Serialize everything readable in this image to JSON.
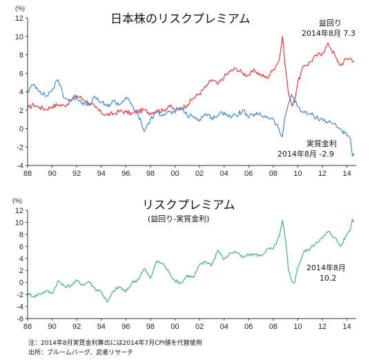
{
  "chart_data": [
    {
      "type": "line",
      "title": "日本株のリスクプレミアム",
      "unit_label": "(%)",
      "ylim": [
        -4,
        12
      ],
      "yticks": [
        "12",
        "10",
        "8",
        "6",
        "4",
        "2",
        "0",
        "-2",
        "-4"
      ],
      "xlim": [
        1988,
        2014.75
      ],
      "xticks": [
        "88",
        "90",
        "92",
        "94",
        "96",
        "98",
        "00",
        "02",
        "04",
        "06",
        "08",
        "10",
        "12",
        "14"
      ],
      "grid": false,
      "series": [
        {
          "name": "益回り",
          "color": "#e8373a",
          "points": [
            [
              1988.0,
              2.2
            ],
            [
              1988.5,
              2.6
            ],
            [
              1989.0,
              2.3
            ],
            [
              1989.5,
              2.1
            ],
            [
              1990.0,
              2.4
            ],
            [
              1990.5,
              2.6
            ],
            [
              1991.0,
              2.5
            ],
            [
              1991.5,
              3.0
            ],
            [
              1992.0,
              3.6
            ],
            [
              1992.5,
              3.2
            ],
            [
              1993.0,
              2.8
            ],
            [
              1993.5,
              2.3
            ],
            [
              1994.0,
              1.7
            ],
            [
              1994.5,
              1.5
            ],
            [
              1995.0,
              1.6
            ],
            [
              1995.5,
              1.9
            ],
            [
              1996.0,
              1.8
            ],
            [
              1996.5,
              1.6
            ],
            [
              1997.0,
              1.9
            ],
            [
              1997.5,
              2.0
            ],
            [
              1998.0,
              1.7
            ],
            [
              1998.5,
              2.0
            ],
            [
              1999.0,
              1.9
            ],
            [
              1999.5,
              2.5
            ],
            [
              2000.0,
              2.0
            ],
            [
              2000.5,
              2.2
            ],
            [
              2001.0,
              2.6
            ],
            [
              2001.5,
              3.3
            ],
            [
              2002.0,
              3.8
            ],
            [
              2002.5,
              4.5
            ],
            [
              2003.0,
              5.3
            ],
            [
              2003.5,
              4.8
            ],
            [
              2004.0,
              5.6
            ],
            [
              2004.5,
              6.2
            ],
            [
              2005.0,
              6.5
            ],
            [
              2005.5,
              6.0
            ],
            [
              2006.0,
              5.8
            ],
            [
              2006.5,
              6.3
            ],
            [
              2007.0,
              5.8
            ],
            [
              2007.5,
              5.5
            ],
            [
              2008.0,
              6.4
            ],
            [
              2008.5,
              7.5
            ],
            [
              2008.75,
              10.0
            ],
            [
              2009.0,
              6.5
            ],
            [
              2009.25,
              3.8
            ],
            [
              2009.5,
              2.5
            ],
            [
              2009.75,
              3.2
            ],
            [
              2010.0,
              5.0
            ],
            [
              2010.5,
              6.8
            ],
            [
              2011.0,
              7.2
            ],
            [
              2011.5,
              7.9
            ],
            [
              2012.0,
              8.2
            ],
            [
              2012.5,
              9.2
            ],
            [
              2013.0,
              8.0
            ],
            [
              2013.25,
              7.2
            ],
            [
              2013.5,
              6.9
            ],
            [
              2014.0,
              7.6
            ],
            [
              2014.3,
              7.6
            ],
            [
              2014.6,
              7.3
            ]
          ]
        },
        {
          "name": "実質金利",
          "color": "#3a87c8",
          "points": [
            [
              1988.0,
              4.0
            ],
            [
              1988.5,
              4.8
            ],
            [
              1989.0,
              4.1
            ],
            [
              1989.5,
              3.5
            ],
            [
              1990.0,
              4.2
            ],
            [
              1990.5,
              5.3
            ],
            [
              1991.0,
              3.3
            ],
            [
              1991.5,
              3.1
            ],
            [
              1992.0,
              3.4
            ],
            [
              1992.5,
              2.8
            ],
            [
              1993.0,
              2.5
            ],
            [
              1993.5,
              3.4
            ],
            [
              1994.0,
              2.8
            ],
            [
              1994.5,
              2.4
            ],
            [
              1995.0,
              3.0
            ],
            [
              1995.5,
              2.6
            ],
            [
              1996.0,
              3.4
            ],
            [
              1996.5,
              2.5
            ],
            [
              1997.0,
              1.5
            ],
            [
              1997.5,
              -0.3
            ],
            [
              1998.0,
              1.0
            ],
            [
              1998.5,
              1.7
            ],
            [
              1999.0,
              1.6
            ],
            [
              1999.5,
              1.8
            ],
            [
              2000.0,
              1.7
            ],
            [
              2000.5,
              2.3
            ],
            [
              2001.0,
              1.4
            ],
            [
              2001.5,
              1.3
            ],
            [
              2002.0,
              1.0
            ],
            [
              2002.5,
              1.6
            ],
            [
              2003.0,
              1.2
            ],
            [
              2003.5,
              1.4
            ],
            [
              2004.0,
              1.8
            ],
            [
              2004.5,
              1.3
            ],
            [
              2005.0,
              1.4
            ],
            [
              2005.5,
              2.0
            ],
            [
              2006.0,
              1.2
            ],
            [
              2006.5,
              1.6
            ],
            [
              2007.0,
              1.4
            ],
            [
              2007.5,
              1.3
            ],
            [
              2008.0,
              1.0
            ],
            [
              2008.5,
              -0.2
            ],
            [
              2008.75,
              -0.9
            ],
            [
              2009.0,
              1.5
            ],
            [
              2009.25,
              2.8
            ],
            [
              2009.5,
              3.7
            ],
            [
              2010.0,
              2.4
            ],
            [
              2010.5,
              1.7
            ],
            [
              2011.0,
              1.6
            ],
            [
              2011.5,
              1.2
            ],
            [
              2012.0,
              1.0
            ],
            [
              2012.5,
              0.7
            ],
            [
              2013.0,
              0.5
            ],
            [
              2013.5,
              -0.1
            ],
            [
              2014.0,
              -0.8
            ],
            [
              2014.3,
              -1.2
            ],
            [
              2014.45,
              -3.0
            ],
            [
              2014.6,
              -2.9
            ]
          ]
        }
      ],
      "annotations": [
        {
          "text": "益回り"
        },
        {
          "text": "2014年8月 7.3"
        },
        {
          "text": "実質金利"
        },
        {
          "text": "2014年8月 -2.9"
        }
      ]
    },
    {
      "type": "line",
      "title": "リスクプレミアム",
      "subtitle": "(益回り-実質金利)",
      "unit_label": "(%)",
      "ylim": [
        -6,
        12
      ],
      "yticks": [
        "12",
        "10",
        "8",
        "6",
        "4",
        "2",
        "0",
        "-2",
        "-4",
        "-6"
      ],
      "xlim": [
        1988,
        2014.75
      ],
      "xticks": [
        "88",
        "90",
        "92",
        "94",
        "96",
        "98",
        "00",
        "02",
        "04",
        "06",
        "08",
        "10",
        "12",
        "14"
      ],
      "grid": false,
      "series": [
        {
          "name": "リスクプレミアム",
          "color": "#3ab56b",
          "points": [
            [
              1988.0,
              -1.8
            ],
            [
              1988.5,
              -2.3
            ],
            [
              1989.0,
              -1.9
            ],
            [
              1989.5,
              -1.4
            ],
            [
              1990.0,
              -1.8
            ],
            [
              1990.5,
              0.3
            ],
            [
              1991.0,
              -0.7
            ],
            [
              1991.5,
              -0.5
            ],
            [
              1992.0,
              0.3
            ],
            [
              1992.5,
              -0.4
            ],
            [
              1993.0,
              0.2
            ],
            [
              1993.5,
              -1.1
            ],
            [
              1994.0,
              -1.5
            ],
            [
              1994.5,
              -3.3
            ],
            [
              1995.0,
              -1.4
            ],
            [
              1995.5,
              -0.7
            ],
            [
              1996.0,
              -1.6
            ],
            [
              1996.5,
              0.0
            ],
            [
              1997.0,
              0.5
            ],
            [
              1997.5,
              2.3
            ],
            [
              1998.0,
              0.7
            ],
            [
              1998.5,
              3.5
            ],
            [
              1999.0,
              3.2
            ],
            [
              1999.5,
              1.7
            ],
            [
              2000.0,
              0.3
            ],
            [
              2000.5,
              -0.1
            ],
            [
              2001.0,
              1.2
            ],
            [
              2001.5,
              0.8
            ],
            [
              2002.0,
              2.9
            ],
            [
              2002.5,
              3.5
            ],
            [
              2003.0,
              2.9
            ],
            [
              2003.5,
              5.4
            ],
            [
              2004.0,
              3.8
            ],
            [
              2004.5,
              4.9
            ],
            [
              2005.0,
              5.1
            ],
            [
              2005.5,
              4.1
            ],
            [
              2006.0,
              4.6
            ],
            [
              2006.5,
              4.7
            ],
            [
              2007.0,
              4.4
            ],
            [
              2007.5,
              5.5
            ],
            [
              2008.0,
              5.6
            ],
            [
              2008.5,
              7.7
            ],
            [
              2008.75,
              10.3
            ],
            [
              2009.0,
              7.0
            ],
            [
              2009.25,
              2.0
            ],
            [
              2009.5,
              0.3
            ],
            [
              2009.75,
              0.0
            ],
            [
              2010.0,
              2.6
            ],
            [
              2010.5,
              5.1
            ],
            [
              2011.0,
              5.6
            ],
            [
              2011.5,
              6.7
            ],
            [
              2012.0,
              7.4
            ],
            [
              2012.5,
              8.5
            ],
            [
              2013.0,
              7.5
            ],
            [
              2013.5,
              6.0
            ],
            [
              2014.0,
              8.0
            ],
            [
              2014.3,
              9.0
            ],
            [
              2014.45,
              10.5
            ],
            [
              2014.6,
              10.2
            ]
          ]
        }
      ],
      "annotations": [
        {
          "text": "2014年8月"
        },
        {
          "text": "10.2"
        }
      ]
    }
  ],
  "notes": [
    "注：2014年8月実質金利算出には2014年7月CPI値を代替使用",
    "出所：ブルームバーグ、武者リサーチ"
  ]
}
